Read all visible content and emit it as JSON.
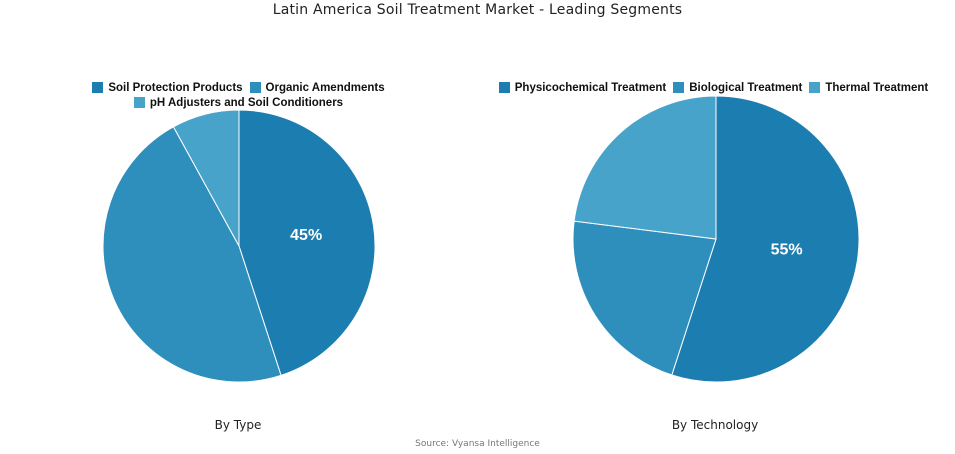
{
  "title": "Latin America Soil Treatment Market - Leading Segments",
  "source": "Source: Vyansa Intelligence",
  "chart_data": [
    {
      "type": "pie",
      "subtitle": "By Type",
      "labels": [
        "Soil Protection Products",
        "Organic Amendments",
        "pH Adjusters and Soil Conditioners"
      ],
      "values": [
        45,
        47,
        8
      ],
      "colors": [
        "#1c7db0",
        "#2e8fbd",
        "#48a3ca"
      ],
      "data_labels": [
        "45%",
        "",
        ""
      ]
    },
    {
      "type": "pie",
      "subtitle": "By Technology",
      "labels": [
        "Physicochemical Treatment",
        "Biological Treatment",
        "Thermal Treatment"
      ],
      "values": [
        55,
        22,
        23
      ],
      "colors": [
        "#1c7db0",
        "#2e8fbd",
        "#48a3ca"
      ],
      "data_labels": [
        "55%",
        "",
        ""
      ]
    }
  ]
}
